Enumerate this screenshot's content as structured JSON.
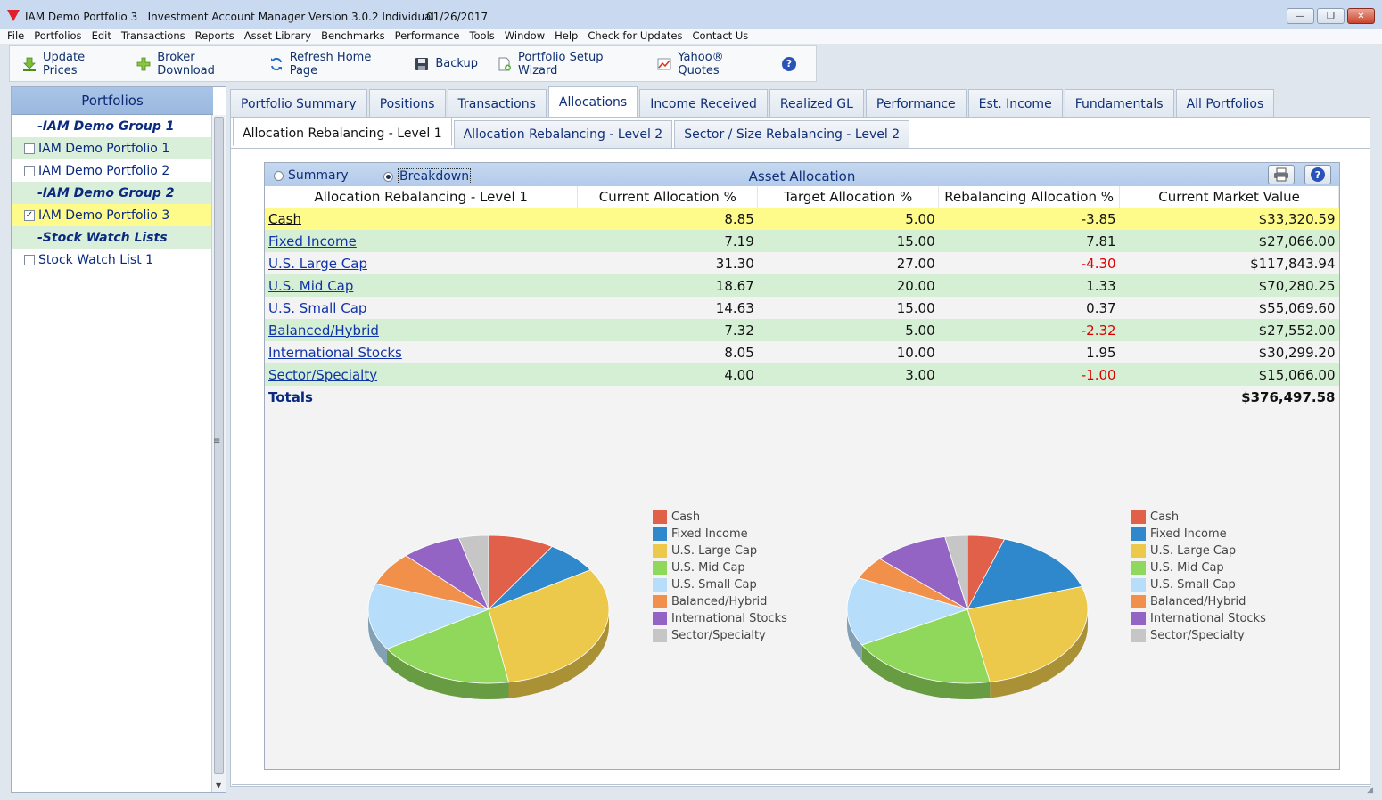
{
  "window": {
    "title": "IAM Demo Portfolio 3   Investment Account Manager Version 3.0.2 Individual",
    "date": "01/26/2017"
  },
  "menu": [
    "File",
    "Portfolios",
    "Edit",
    "Transactions",
    "Reports",
    "Asset Library",
    "Benchmarks",
    "Performance",
    "Tools",
    "Window",
    "Help",
    "Check for Updates",
    "Contact Us"
  ],
  "toolbar": {
    "update_prices": "Update Prices",
    "broker_download": "Broker Download",
    "refresh_home": "Refresh Home Page",
    "backup": "Backup",
    "setup_wizard": "Portfolio Setup Wizard",
    "yahoo_quotes": "Yahoo® Quotes"
  },
  "sidebar": {
    "title": "Portfolios",
    "items": [
      {
        "label": "-IAM Demo Group 1",
        "type": "group"
      },
      {
        "label": "IAM Demo Portfolio 1",
        "type": "item",
        "checked": false
      },
      {
        "label": "IAM Demo Portfolio 2",
        "type": "item",
        "checked": false
      },
      {
        "label": "-IAM Demo Group 2",
        "type": "group"
      },
      {
        "label": "IAM Demo Portfolio 3",
        "type": "item",
        "checked": true
      },
      {
        "label": "-Stock Watch Lists",
        "type": "group"
      },
      {
        "label": "Stock Watch List 1",
        "type": "item",
        "checked": false
      }
    ]
  },
  "tabs": [
    "Portfolio Summary",
    "Positions",
    "Transactions",
    "Allocations",
    "Income Received",
    "Realized GL",
    "Performance",
    "Est. Income",
    "Fundamentals",
    "All Portfolios"
  ],
  "active_tab": "Allocations",
  "subtabs": [
    "Allocation Rebalancing - Level 1",
    "Allocation Rebalancing - Level 2",
    "Sector / Size Rebalancing - Level 2"
  ],
  "allocation": {
    "title": "Asset Allocation",
    "view_summary": "Summary",
    "view_breakdown": "Breakdown",
    "columns": [
      "Allocation Rebalancing - Level 1",
      "Current Allocation %",
      "Target Allocation %",
      "Rebalancing Allocation %",
      "Current Market Value"
    ],
    "rows": [
      {
        "name": "Cash",
        "current": "8.85",
        "target": "5.00",
        "rebalance": "-3.85",
        "value": "$33,320.59"
      },
      {
        "name": "Fixed Income",
        "current": "7.19",
        "target": "15.00",
        "rebalance": "7.81",
        "value": "$27,066.00"
      },
      {
        "name": "U.S. Large Cap",
        "current": "31.30",
        "target": "27.00",
        "rebalance": "-4.30",
        "value": "$117,843.94"
      },
      {
        "name": "U.S. Mid Cap",
        "current": "18.67",
        "target": "20.00",
        "rebalance": "1.33",
        "value": "$70,280.25"
      },
      {
        "name": "U.S. Small Cap",
        "current": "14.63",
        "target": "15.00",
        "rebalance": "0.37",
        "value": "$55,069.60"
      },
      {
        "name": "Balanced/Hybrid",
        "current": "7.32",
        "target": "5.00",
        "rebalance": "-2.32",
        "value": "$27,552.00"
      },
      {
        "name": "International Stocks",
        "current": "8.05",
        "target": "10.00",
        "rebalance": "1.95",
        "value": "$30,299.20"
      },
      {
        "name": "Sector/Specialty",
        "current": "4.00",
        "target": "3.00",
        "rebalance": "-1.00",
        "value": "$15,066.00"
      }
    ],
    "totals_label": "Totals",
    "totals_value": "$376,497.58"
  },
  "chart_data": [
    {
      "type": "pie",
      "categories": [
        "Cash",
        "Fixed Income",
        "U.S. Large Cap",
        "U.S. Mid Cap",
        "U.S. Small Cap",
        "Balanced/Hybrid",
        "International Stocks",
        "Sector/Specialty"
      ],
      "values": [
        8.85,
        7.19,
        31.3,
        18.67,
        14.63,
        7.32,
        8.05,
        4.0
      ],
      "colors": [
        "#e0604a",
        "#2f87cc",
        "#ecc94b",
        "#8fd85c",
        "#b6defa",
        "#f0904a",
        "#9464c4",
        "#c6c6c6"
      ],
      "legend": "right"
    },
    {
      "type": "pie",
      "categories": [
        "Cash",
        "Fixed Income",
        "U.S. Large Cap",
        "U.S. Mid Cap",
        "U.S. Small Cap",
        "Balanced/Hybrid",
        "International Stocks",
        "Sector/Specialty"
      ],
      "values": [
        5.0,
        15.0,
        27.0,
        20.0,
        15.0,
        5.0,
        10.0,
        3.0
      ],
      "colors": [
        "#e0604a",
        "#2f87cc",
        "#ecc94b",
        "#8fd85c",
        "#b6defa",
        "#f0904a",
        "#9464c4",
        "#c6c6c6"
      ],
      "legend": "right"
    }
  ]
}
